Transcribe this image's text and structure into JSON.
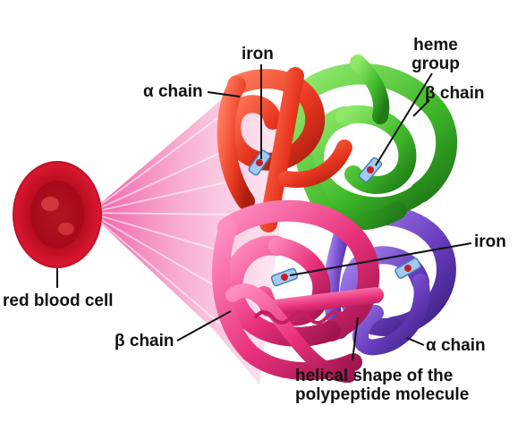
{
  "labels": {
    "iron_top": "iron",
    "heme_group_line1": "heme",
    "heme_group_line2": "group",
    "alpha_chain_top": "α chain",
    "beta_chain_right": "β chain",
    "iron_right": "iron",
    "red_blood_cell": "red blood cell",
    "beta_chain_bottom": "β chain",
    "alpha_chain_bottom": "α chain",
    "helical_line1": "helical shape of the",
    "helical_line2": "polypeptide molecule"
  },
  "colors": {
    "alpha_chain": "#e8361f",
    "beta_chain_top": "#3fb82a",
    "beta_chain_bottom": "#e8317a",
    "alpha_chain_bottom": "#6a3fc0",
    "red_blood_cell": "#c8102e",
    "heme": "#7fb6e6"
  }
}
